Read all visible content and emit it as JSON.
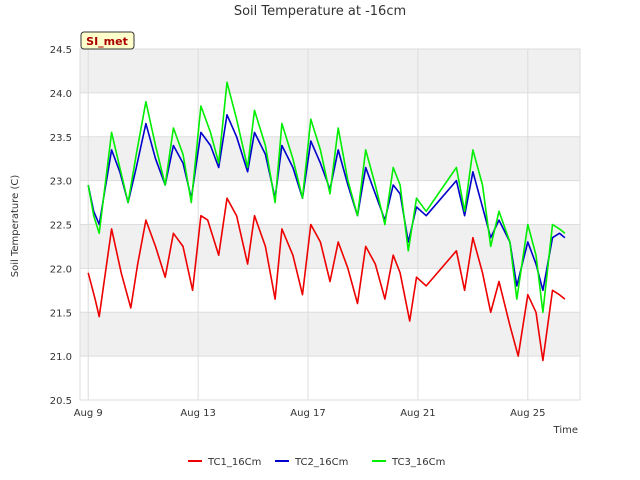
{
  "chart_data": {
    "type": "line",
    "title": "Soil Temperature at -16cm",
    "xlabel": "Time",
    "ylabel": "Soil Temperature (C)",
    "ylim": [
      20.5,
      24.5
    ],
    "xlim": [
      8.7,
      26.9
    ],
    "yticks": [
      20.5,
      21.0,
      21.5,
      22.0,
      22.5,
      23.0,
      23.5,
      24.0,
      24.5
    ],
    "yticklabels": [
      "20.5",
      "21.0",
      "21.5",
      "22.0",
      "22.5",
      "23.0",
      "23.5",
      "24.0",
      "24.5"
    ],
    "xticks": [
      9,
      13,
      17,
      21,
      25
    ],
    "xticklabels": [
      "Aug 9",
      "Aug 13",
      "Aug 17",
      "Aug 21",
      "Aug 25"
    ],
    "station_badge": "SI_met",
    "legend_position": "bottom-center",
    "colors": {
      "TC1_16Cm": "#ee0000",
      "TC2_16Cm": "#0000cc",
      "TC3_16Cm": "#00ee00",
      "band": "#f0f0f0",
      "grid": "#dddddd",
      "badge_bg": "#ffffcc"
    },
    "series": [
      {
        "name": "TC1_16Cm",
        "color": "#ee0000",
        "x": [
          9.0,
          9.25,
          9.4,
          9.85,
          10.2,
          10.55,
          10.8,
          11.1,
          11.45,
          11.8,
          12.1,
          12.45,
          12.8,
          13.1,
          13.35,
          13.75,
          14.05,
          14.4,
          14.8,
          15.05,
          15.45,
          15.8,
          16.05,
          16.45,
          16.8,
          17.1,
          17.45,
          17.8,
          18.1,
          18.45,
          18.8,
          19.1,
          19.45,
          19.8,
          20.1,
          20.35,
          20.7,
          20.95,
          21.3,
          22.4,
          22.7,
          23.0,
          23.35,
          23.65,
          23.95,
          24.35,
          24.65,
          25.0,
          25.3,
          25.55,
          25.9,
          26.15,
          26.35
        ],
        "values": [
          21.95,
          21.65,
          21.45,
          22.45,
          21.95,
          21.55,
          22.05,
          22.55,
          22.25,
          21.9,
          22.4,
          22.25,
          21.75,
          22.6,
          22.55,
          22.15,
          22.8,
          22.6,
          22.05,
          22.6,
          22.25,
          21.65,
          22.45,
          22.15,
          21.7,
          22.5,
          22.3,
          21.85,
          22.3,
          22.0,
          21.6,
          22.25,
          22.05,
          21.65,
          22.15,
          21.95,
          21.4,
          21.9,
          21.8,
          22.2,
          21.75,
          22.35,
          21.95,
          21.5,
          21.85,
          21.35,
          21.0,
          21.7,
          21.5,
          20.95,
          21.75,
          21.7,
          21.65
        ]
      },
      {
        "name": "TC2_16Cm",
        "color": "#0000cc",
        "x": [
          9.0,
          9.2,
          9.4,
          9.85,
          10.15,
          10.45,
          10.75,
          11.1,
          11.45,
          11.8,
          12.1,
          12.45,
          12.75,
          13.1,
          13.45,
          13.75,
          14.05,
          14.4,
          14.8,
          15.05,
          15.45,
          15.8,
          16.05,
          16.45,
          16.8,
          17.1,
          17.45,
          17.8,
          18.1,
          18.45,
          18.8,
          19.1,
          19.45,
          19.8,
          20.1,
          20.35,
          20.65,
          20.95,
          21.3,
          22.4,
          22.7,
          23.0,
          23.35,
          23.65,
          23.95,
          24.35,
          24.6,
          25.0,
          25.3,
          25.55,
          25.9,
          26.15,
          26.35
        ],
        "values": [
          22.95,
          22.65,
          22.5,
          23.35,
          23.1,
          22.75,
          23.15,
          23.65,
          23.25,
          22.95,
          23.4,
          23.2,
          22.8,
          23.55,
          23.4,
          23.15,
          23.75,
          23.5,
          23.1,
          23.55,
          23.3,
          22.8,
          23.4,
          23.15,
          22.8,
          23.45,
          23.2,
          22.9,
          23.35,
          22.95,
          22.6,
          23.15,
          22.85,
          22.55,
          22.95,
          22.85,
          22.3,
          22.7,
          22.6,
          23.0,
          22.6,
          23.1,
          22.7,
          22.35,
          22.55,
          22.3,
          21.8,
          22.3,
          22.05,
          21.75,
          22.35,
          22.4,
          22.35
        ]
      },
      {
        "name": "TC3_16Cm",
        "color": "#00ee00",
        "x": [
          9.0,
          9.2,
          9.4,
          9.85,
          10.15,
          10.45,
          10.75,
          11.1,
          11.45,
          11.8,
          12.1,
          12.45,
          12.75,
          13.1,
          13.45,
          13.75,
          14.05,
          14.4,
          14.8,
          15.05,
          15.45,
          15.8,
          16.05,
          16.45,
          16.8,
          17.1,
          17.45,
          17.8,
          18.1,
          18.45,
          18.8,
          19.1,
          19.45,
          19.8,
          20.1,
          20.35,
          20.65,
          20.95,
          21.3,
          22.4,
          22.7,
          23.0,
          23.35,
          23.65,
          23.95,
          24.35,
          24.6,
          25.0,
          25.3,
          25.55,
          25.9,
          26.15,
          26.35
        ],
        "values": [
          22.95,
          22.6,
          22.4,
          23.55,
          23.15,
          22.75,
          23.3,
          23.9,
          23.4,
          22.95,
          23.6,
          23.3,
          22.75,
          23.85,
          23.55,
          23.2,
          24.12,
          23.7,
          23.15,
          23.8,
          23.4,
          22.75,
          23.65,
          23.25,
          22.8,
          23.7,
          23.35,
          22.85,
          23.6,
          23.0,
          22.6,
          23.35,
          22.95,
          22.5,
          23.15,
          22.95,
          22.2,
          22.8,
          22.65,
          23.15,
          22.65,
          23.35,
          22.95,
          22.25,
          22.65,
          22.3,
          21.65,
          22.5,
          22.15,
          21.5,
          22.5,
          22.45,
          22.4
        ]
      }
    ]
  }
}
